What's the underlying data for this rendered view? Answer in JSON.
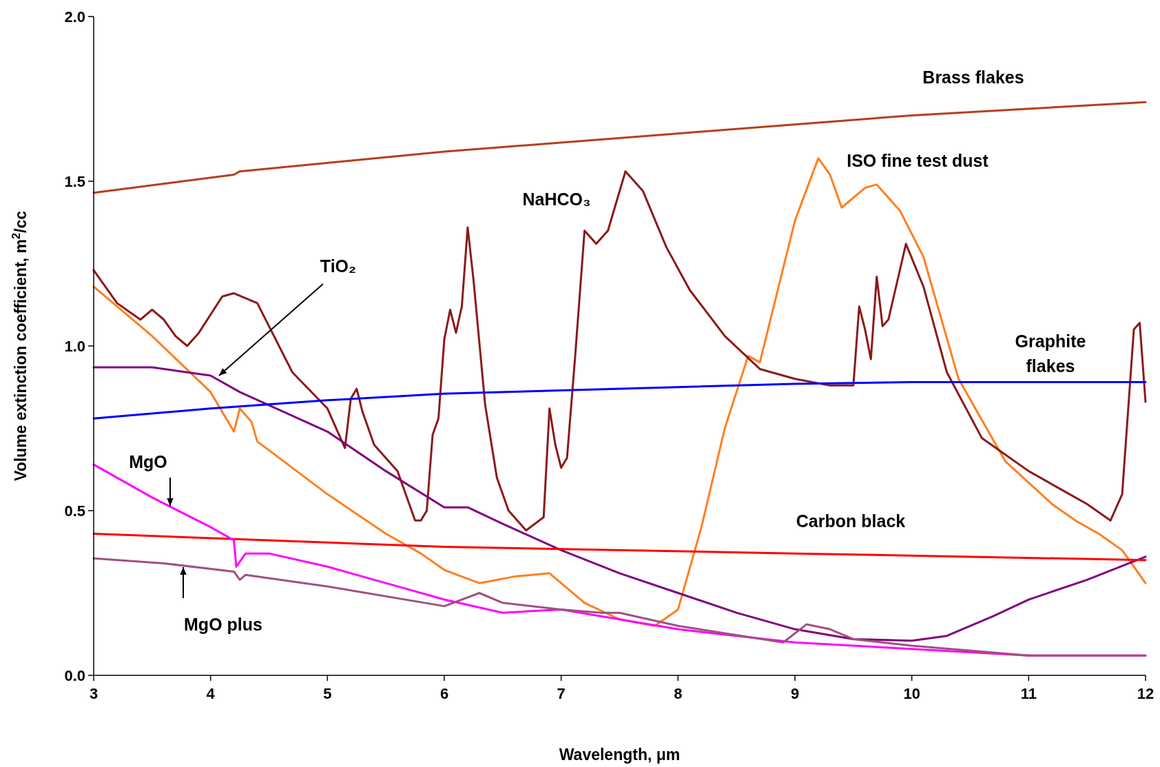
{
  "chart_data": {
    "type": "line",
    "xlabel": "Wavelength, μm",
    "ylabel": "Volume extinction coefficient, m$^{2}$/cc",
    "xlim": [
      3,
      12
    ],
    "ylim": [
      0,
      2
    ],
    "xticks": [
      3,
      4,
      5,
      6,
      7,
      8,
      9,
      10,
      11,
      12
    ],
    "yticks": [
      {
        "value": 0,
        "label": "0.0"
      },
      {
        "value": 0.5,
        "label": "0.5"
      },
      {
        "value": 1,
        "label": "1.0"
      },
      {
        "value": 1.5,
        "label": "1.5"
      },
      {
        "value": 2,
        "label": "2.0"
      }
    ],
    "grid": false,
    "marker": "none",
    "line_style": "solid",
    "series": [
      {
        "name": "Brass flakes",
        "color": "#b5401a",
        "x": [
          3,
          4.2,
          4.25,
          6,
          8,
          10,
          12
        ],
        "values": [
          1.465,
          1.52,
          1.53,
          1.59,
          1.645,
          1.7,
          1.74
        ]
      },
      {
        "name": "ISO fine test dust",
        "color": "#ff7f20",
        "x": [
          3,
          3.5,
          4,
          4.2,
          4.25,
          4.35,
          4.4,
          5,
          5.5,
          5.8,
          6,
          6.3,
          6.6,
          6.9,
          7.2,
          7.5,
          7.8,
          8,
          8.2,
          8.4,
          8.6,
          8.7,
          9,
          9.2,
          9.3,
          9.4,
          9.6,
          9.7,
          9.9,
          10.1,
          10.4,
          10.8,
          11.2,
          11.4,
          11.6,
          11.8,
          12
        ],
        "values": [
          1.18,
          1.03,
          0.86,
          0.74,
          0.81,
          0.77,
          0.71,
          0.55,
          0.43,
          0.37,
          0.32,
          0.28,
          0.3,
          0.31,
          0.22,
          0.17,
          0.15,
          0.2,
          0.45,
          0.75,
          0.97,
          0.95,
          1.38,
          1.57,
          1.52,
          1.42,
          1.48,
          1.49,
          1.41,
          1.27,
          0.9,
          0.65,
          0.52,
          0.47,
          0.43,
          0.38,
          0.28
        ]
      },
      {
        "name": "NaHCO₃",
        "color": "#8b1a1a",
        "x": [
          3,
          3.2,
          3.4,
          3.5,
          3.6,
          3.7,
          3.8,
          3.9,
          4.1,
          4.2,
          4.4,
          4.5,
          4.7,
          5,
          5.1,
          5.15,
          5.2,
          5.25,
          5.3,
          5.4,
          5.6,
          5.75,
          5.8,
          5.85,
          5.9,
          5.95,
          6,
          6.05,
          6.1,
          6.15,
          6.2,
          6.25,
          6.35,
          6.45,
          6.55,
          6.7,
          6.85,
          6.9,
          6.95,
          7,
          7.05,
          7.12,
          7.2,
          7.3,
          7.4,
          7.55,
          7.7,
          7.9,
          8.1,
          8.4,
          8.7,
          9,
          9.3,
          9.5,
          9.55,
          9.6,
          9.65,
          9.7,
          9.75,
          9.8,
          9.95,
          10.1,
          10.3,
          10.6,
          11,
          11.3,
          11.5,
          11.7,
          11.8,
          11.9,
          11.95,
          12
        ],
        "values": [
          1.23,
          1.13,
          1.08,
          1.11,
          1.08,
          1.03,
          1,
          1.04,
          1.15,
          1.16,
          1.13,
          1.06,
          0.92,
          0.81,
          0.73,
          0.69,
          0.84,
          0.87,
          0.8,
          0.7,
          0.62,
          0.47,
          0.47,
          0.5,
          0.73,
          0.78,
          1.02,
          1.11,
          1.04,
          1.12,
          1.36,
          1.2,
          0.82,
          0.6,
          0.5,
          0.44,
          0.48,
          0.81,
          0.7,
          0.63,
          0.66,
          0.97,
          1.35,
          1.31,
          1.35,
          1.53,
          1.47,
          1.3,
          1.17,
          1.03,
          0.93,
          0.9,
          0.88,
          0.88,
          1.12,
          1.05,
          0.96,
          1.21,
          1.06,
          1.08,
          1.31,
          1.18,
          0.92,
          0.72,
          0.62,
          0.56,
          0.52,
          0.47,
          0.55,
          1.05,
          1.07,
          0.83
        ]
      },
      {
        "name": "TiO₂",
        "color": "#800080",
        "x": [
          3,
          3.5,
          4,
          4.25,
          5,
          5.5,
          6,
          6.2,
          6.5,
          7,
          7.5,
          8,
          8.5,
          9,
          9.5,
          10,
          10.3,
          10.7,
          11,
          11.5,
          12
        ],
        "values": [
          0.935,
          0.935,
          0.91,
          0.86,
          0.74,
          0.62,
          0.51,
          0.51,
          0.46,
          0.38,
          0.31,
          0.25,
          0.19,
          0.14,
          0.11,
          0.105,
          0.12,
          0.18,
          0.23,
          0.29,
          0.36
        ]
      },
      {
        "name": "Graphite flakes",
        "color": "#0000ff",
        "x": [
          3,
          4,
          5,
          6,
          7,
          8,
          9,
          10,
          11,
          12
        ],
        "values": [
          0.78,
          0.81,
          0.835,
          0.855,
          0.865,
          0.875,
          0.885,
          0.89,
          0.89,
          0.89
        ]
      },
      {
        "name": "Carbon black",
        "color": "#ff0000",
        "x": [
          3,
          6,
          9,
          12
        ],
        "values": [
          0.43,
          0.39,
          0.37,
          0.35
        ]
      },
      {
        "name": "MgO",
        "color": "#ff00ff",
        "x": [
          3,
          3.5,
          4,
          4.2,
          4.22,
          4.3,
          4.5,
          5,
          5.5,
          6,
          6.5,
          7,
          7.5,
          8,
          9,
          10,
          11,
          12
        ],
        "values": [
          0.64,
          0.54,
          0.45,
          0.41,
          0.33,
          0.37,
          0.37,
          0.33,
          0.28,
          0.23,
          0.19,
          0.2,
          0.17,
          0.14,
          0.1,
          0.08,
          0.06,
          0.06
        ]
      },
      {
        "name": "MgO plus",
        "color": "#a05080",
        "x": [
          3,
          3.6,
          4.2,
          4.25,
          4.3,
          5,
          6,
          6.3,
          6.5,
          7,
          7.35,
          7.5,
          8,
          8.9,
          9.1,
          9.3,
          9.5,
          10,
          11,
          12
        ],
        "values": [
          0.355,
          0.34,
          0.315,
          0.29,
          0.305,
          0.27,
          0.21,
          0.25,
          0.22,
          0.2,
          0.19,
          0.19,
          0.15,
          0.1,
          0.155,
          0.14,
          0.11,
          0.09,
          0.06,
          0.06
        ]
      }
    ]
  }
}
